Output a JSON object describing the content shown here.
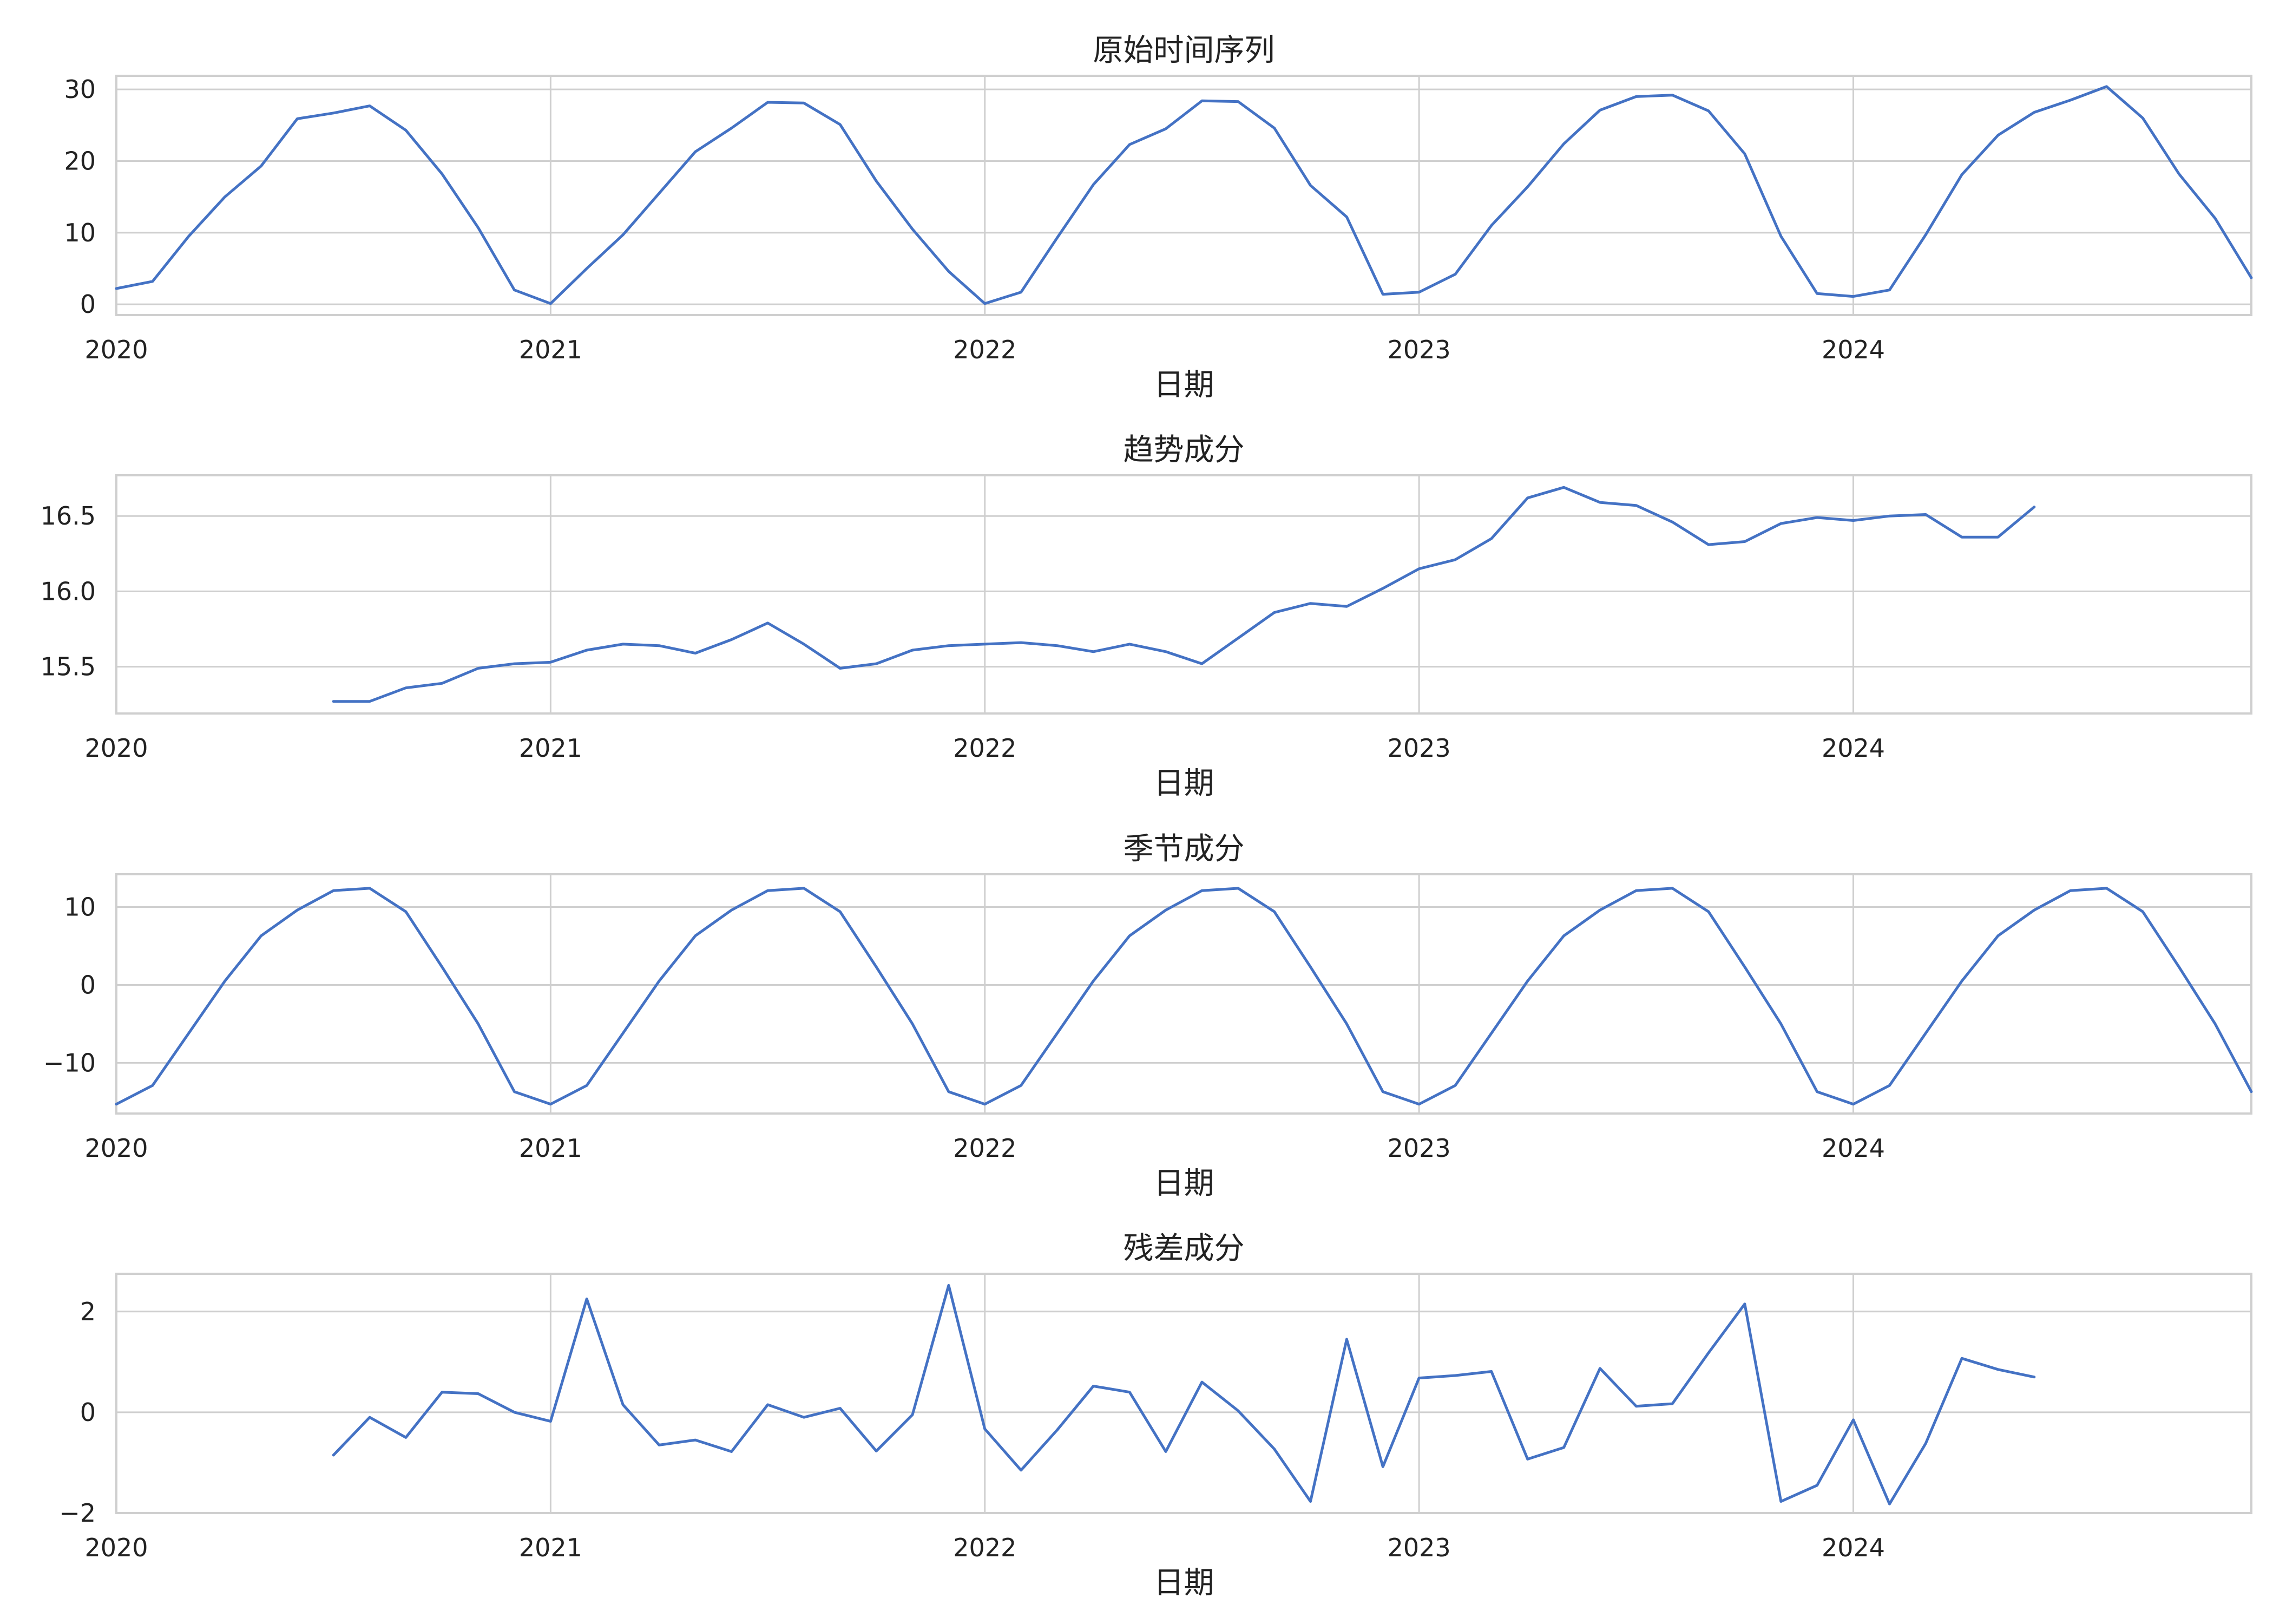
{
  "chart_data": [
    {
      "type": "line",
      "title": "原始时间序列",
      "xlabel": "日期",
      "ylabel": "",
      "x_start": "2020-01",
      "x_ticks": [
        "2020",
        "2021",
        "2022",
        "2023",
        "2024"
      ],
      "xlim": [
        "2020-01",
        "2024-12"
      ],
      "y_ticks": [
        "0",
        "10",
        "20",
        "30"
      ],
      "y_tick_values": [
        0,
        10,
        20,
        30
      ],
      "ylim": [
        -1.5,
        31.9
      ],
      "grid": true,
      "color": "#4472c4",
      "values": [
        2.2,
        3.2,
        9.5,
        15.0,
        19.3,
        25.9,
        26.7,
        27.7,
        24.3,
        18.2,
        10.7,
        2.0,
        0.1,
        5.0,
        9.7,
        15.5,
        21.3,
        24.6,
        28.2,
        28.1,
        25.1,
        17.2,
        10.5,
        4.6,
        0.1,
        1.7,
        9.3,
        16.7,
        22.3,
        24.5,
        28.4,
        28.3,
        24.6,
        16.6,
        12.2,
        1.4,
        1.7,
        4.2,
        11.0,
        16.4,
        22.4,
        27.1,
        29.0,
        29.2,
        27.0,
        21.0,
        9.5,
        1.5,
        1.1,
        2.0,
        9.7,
        18.1,
        23.6,
        26.8,
        28.5,
        30.4,
        26.0,
        18.2,
        12.0,
        3.7
      ]
    },
    {
      "type": "line",
      "title": "趋势成分",
      "xlabel": "日期",
      "ylabel": "",
      "x_start": "2020-01",
      "x_ticks": [
        "2020",
        "2021",
        "2022",
        "2023",
        "2024"
      ],
      "xlim": [
        "2020-01",
        "2024-12"
      ],
      "y_ticks": [
        "15.5",
        "16.0",
        "16.5"
      ],
      "y_tick_values": [
        15.5,
        16.0,
        16.5
      ],
      "ylim": [
        15.19,
        16.77
      ],
      "grid": true,
      "color": "#4472c4",
      "values": [
        null,
        null,
        null,
        null,
        null,
        null,
        15.27,
        15.27,
        15.36,
        15.39,
        15.49,
        15.52,
        15.53,
        15.61,
        15.65,
        15.64,
        15.59,
        15.68,
        15.79,
        15.65,
        15.49,
        15.52,
        15.61,
        15.64,
        15.65,
        15.66,
        15.64,
        15.6,
        15.65,
        15.6,
        15.52,
        15.69,
        15.86,
        15.92,
        15.9,
        16.02,
        16.15,
        16.21,
        16.35,
        16.62,
        16.69,
        16.59,
        16.57,
        16.46,
        16.31,
        16.33,
        16.45,
        16.49,
        16.47,
        16.5,
        16.51,
        16.36,
        16.36,
        16.56,
        null,
        null,
        null,
        null,
        null,
        null
      ]
    },
    {
      "type": "line",
      "title": "季节成分",
      "xlabel": "日期",
      "ylabel": "",
      "x_start": "2020-01",
      "x_ticks": [
        "2020",
        "2021",
        "2022",
        "2023",
        "2024"
      ],
      "xlim": [
        "2020-01",
        "2024-12"
      ],
      "y_ticks": [
        "−10",
        "0",
        "10"
      ],
      "y_tick_values": [
        -10,
        0,
        10
      ],
      "ylim": [
        -16.5,
        14.2
      ],
      "grid": true,
      "color": "#4472c4",
      "values": [
        -15.3,
        -12.9,
        -6.2,
        0.5,
        6.3,
        9.6,
        12.1,
        12.4,
        9.4,
        2.3,
        -5.0,
        -13.7,
        -15.3,
        -12.9,
        -6.2,
        0.5,
        6.3,
        9.6,
        12.1,
        12.4,
        9.4,
        2.3,
        -5.0,
        -13.7,
        -15.3,
        -12.9,
        -6.2,
        0.5,
        6.3,
        9.6,
        12.1,
        12.4,
        9.4,
        2.3,
        -5.0,
        -13.7,
        -15.3,
        -12.9,
        -6.2,
        0.5,
        6.3,
        9.6,
        12.1,
        12.4,
        9.4,
        2.3,
        -5.0,
        -13.7,
        -15.3,
        -12.9,
        -6.2,
        0.5,
        6.3,
        9.6,
        12.1,
        12.4,
        9.4,
        2.3,
        -5.0,
        -13.7
      ]
    },
    {
      "type": "line",
      "title": "残差成分",
      "xlabel": "日期",
      "ylabel": "",
      "x_start": "2020-01",
      "x_ticks": [
        "2020",
        "2021",
        "2022",
        "2023",
        "2024"
      ],
      "xlim": [
        "2020-01",
        "2024-12"
      ],
      "y_ticks": [
        "−2",
        "0",
        "2"
      ],
      "y_tick_values": [
        -2,
        0,
        2
      ],
      "ylim": [
        -2.0,
        2.75
      ],
      "grid": true,
      "color": "#4472c4",
      "values": [
        null,
        null,
        null,
        null,
        null,
        null,
        -0.85,
        -0.1,
        -0.5,
        0.4,
        0.37,
        0.0,
        -0.18,
        2.25,
        0.15,
        -0.65,
        -0.55,
        -0.78,
        0.15,
        -0.1,
        0.08,
        -0.77,
        -0.05,
        2.52,
        -0.33,
        -1.15,
        -0.35,
        0.52,
        0.4,
        -0.78,
        0.6,
        0.03,
        -0.73,
        -1.77,
        1.45,
        -1.08,
        0.68,
        0.73,
        0.81,
        -0.93,
        -0.7,
        0.87,
        0.12,
        0.17,
        1.18,
        2.15,
        -1.77,
        -1.45,
        -0.15,
        -1.82,
        -0.62,
        1.07,
        0.85,
        0.7,
        null,
        null,
        null,
        null,
        null,
        null
      ]
    }
  ]
}
